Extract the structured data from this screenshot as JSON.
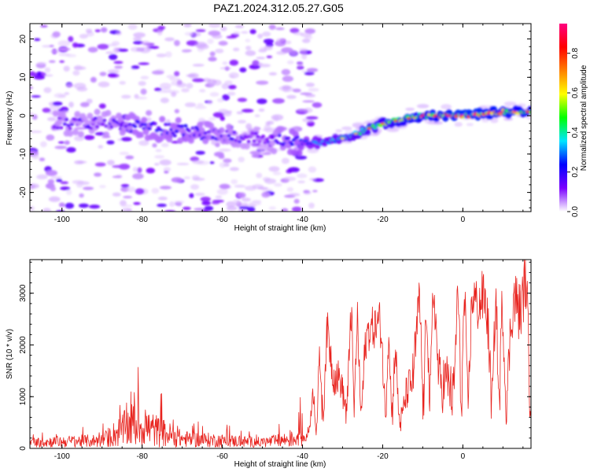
{
  "title": "PAZ1.2024.312.05.27.G05",
  "chart_data": [
    {
      "type": "heatmap",
      "xlabel": "Height of straight line (km)",
      "ylabel": "Frequency (Hz)",
      "xlim": [
        -108,
        17
      ],
      "ylim": [
        -25,
        24
      ],
      "x_ticks": [
        -100,
        -80,
        -60,
        -40,
        -20,
        0
      ],
      "y_ticks": [
        -20,
        -10,
        0,
        10,
        20
      ],
      "colorbar": {
        "label": "Normalized spectral amplitude",
        "range": [
          0,
          0.95
        ],
        "ticks": [
          "0.0",
          "0.2",
          "0.4",
          "0.6",
          "0.8"
        ],
        "tick_values": [
          0,
          0.2,
          0.4,
          0.6,
          0.8
        ],
        "colormap": [
          "#ffffff",
          "#7a00ff",
          "#0000ff",
          "#00e5ff",
          "#00ff00",
          "#ffff00",
          "#ff8000",
          "#ff0000",
          "#ff0080"
        ]
      },
      "ridge": {
        "heights_km": [
          -90,
          -80,
          -70,
          -60,
          -50,
          -40,
          -35,
          -30,
          -20,
          -10,
          0,
          10,
          17
        ],
        "frequency_hz": [
          -2,
          -3,
          -4,
          -5,
          -6,
          -7,
          -7,
          -6,
          -2,
          0,
          0,
          1,
          1
        ],
        "amplitude": [
          0.15,
          0.2,
          0.2,
          0.18,
          0.12,
          0.25,
          0.35,
          0.4,
          0.5,
          0.65,
          0.75,
          0.7,
          0.6
        ]
      },
      "grid": false
    },
    {
      "type": "line",
      "xlabel": "Height of straight line (km)",
      "ylabel": "SNR (10 * v/v)",
      "xlim": [
        -108,
        17
      ],
      "ylim": [
        0,
        3650
      ],
      "x_ticks": [
        -100,
        -80,
        -60,
        -40,
        -20,
        0
      ],
      "y_ticks": [
        0,
        1000,
        2000,
        3000
      ],
      "color": "#e8231e",
      "envelope": {
        "x": [
          -108,
          -90,
          -82,
          -70,
          -60,
          -50,
          -42,
          -38,
          -35,
          -33,
          -30,
          -28,
          -25,
          -20,
          -15,
          -12,
          -10,
          -5,
          0,
          5,
          10,
          13,
          17
        ],
        "y": [
          150,
          200,
          700,
          250,
          200,
          150,
          250,
          800,
          2000,
          2400,
          1800,
          2700,
          2200,
          2500,
          1500,
          3000,
          2600,
          3300,
          2800,
          3100,
          2700,
          3500,
          3100
        ]
      },
      "grid": false
    }
  ]
}
